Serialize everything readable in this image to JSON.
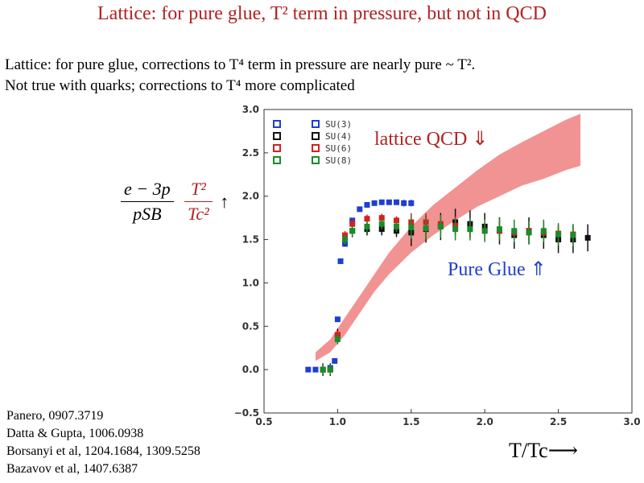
{
  "title": "Lattice: for pure glue, T² term in pressure, but not in QCD",
  "subtitle": {
    "line1": "Lattice: for pure glue, corrections to T⁴ term in pressure are nearly pure ~ T².",
    "line2": "Not true with quarks; corrections to T⁴ more complicated"
  },
  "formula": {
    "numerator": "e − 3p",
    "denominator": "pSB",
    "factor_num": "T²",
    "factor_den": "Tc²",
    "arrow": "↑"
  },
  "annotations": {
    "lattice_qcd": "lattice QCD ⇓",
    "pure_glue": "Pure Glue ⇑",
    "xaxis": "T/Tc⟶"
  },
  "references": [
    "Panero, 0907.3719",
    "Datta & Gupta, 1006.0938",
    "Borsanyi et al, 1204.1684, 1309.5258",
    "Bazavov et al, 1407.6387"
  ],
  "colors": {
    "title": "#b22222",
    "band": "#f08080",
    "su3": "#1f3fd0",
    "su4": "#111111",
    "su6": "#d62020",
    "su8": "#1a8c2a"
  },
  "chart_data": {
    "type": "scatter",
    "xlim": [
      0.5,
      3.0
    ],
    "ylim": [
      -0.5,
      3.0
    ],
    "xticks": [
      "0.5",
      "1.0",
      "1.5",
      "2.0",
      "2.5",
      "3.0"
    ],
    "yticks": [
      "−0.5",
      "0.0",
      "0.5",
      "1.0",
      "1.5",
      "2.0",
      "2.5",
      "3.0"
    ],
    "legend": [
      "SU(3)",
      "SU(4)",
      "SU(6)",
      "SU(8)"
    ],
    "series": [
      {
        "name": "SU(3)",
        "x": [
          0.8,
          0.85,
          0.9,
          0.95,
          0.98,
          1.0,
          1.02,
          1.05,
          1.1,
          1.15,
          1.2,
          1.25,
          1.3,
          1.35,
          1.4,
          1.45,
          1.5
        ],
        "y": [
          0.0,
          0.0,
          0.0,
          0.02,
          0.1,
          0.58,
          1.25,
          1.45,
          1.72,
          1.85,
          1.9,
          1.92,
          1.93,
          1.93,
          1.93,
          1.92,
          1.92
        ]
      },
      {
        "name": "SU(4)",
        "x": [
          0.9,
          0.95,
          1.0,
          1.05,
          1.1,
          1.2,
          1.3,
          1.4,
          1.5,
          1.6,
          1.7,
          1.8,
          1.9,
          2.0,
          2.1,
          2.2,
          2.3,
          2.4,
          2.5,
          2.6,
          2.7
        ],
        "y": [
          0.0,
          0.0,
          0.4,
          1.5,
          1.6,
          1.62,
          1.62,
          1.6,
          1.58,
          1.62,
          1.65,
          1.7,
          1.68,
          1.65,
          1.6,
          1.55,
          1.6,
          1.55,
          1.5,
          1.5,
          1.52
        ]
      },
      {
        "name": "SU(6)",
        "x": [
          0.9,
          0.95,
          1.0,
          1.05,
          1.1,
          1.2,
          1.3,
          1.4,
          1.5,
          1.6,
          1.7,
          1.8,
          1.9,
          2.0,
          2.1,
          2.2,
          2.3,
          2.4,
          2.5,
          2.6
        ],
        "y": [
          0.0,
          0.0,
          0.4,
          1.55,
          1.68,
          1.74,
          1.75,
          1.72,
          1.7,
          1.7,
          1.68,
          1.66,
          1.62,
          1.6,
          1.6,
          1.58,
          1.6,
          1.58,
          1.57,
          1.56
        ]
      },
      {
        "name": "SU(8)",
        "x": [
          0.9,
          0.95,
          1.0,
          1.05,
          1.1,
          1.2,
          1.3,
          1.4,
          1.5,
          1.6,
          1.7,
          1.8,
          1.9,
          2.0,
          2.1,
          2.2,
          2.3,
          2.4,
          2.5,
          2.6
        ],
        "y": [
          0.0,
          0.0,
          0.35,
          1.5,
          1.6,
          1.65,
          1.68,
          1.65,
          1.64,
          1.63,
          1.65,
          1.62,
          1.62,
          1.6,
          1.62,
          1.6,
          1.58,
          1.6,
          1.56,
          1.55
        ]
      }
    ],
    "band": {
      "name": "lattice QCD",
      "x": [
        0.85,
        0.95,
        1.05,
        1.15,
        1.25,
        1.35,
        1.5,
        1.65,
        1.8,
        1.95,
        2.1,
        2.25,
        2.4,
        2.55,
        2.65
      ],
      "lower": [
        0.1,
        0.2,
        0.4,
        0.65,
        0.9,
        1.1,
        1.35,
        1.55,
        1.72,
        1.88,
        2.0,
        2.12,
        2.2,
        2.3,
        2.35
      ],
      "upper": [
        0.2,
        0.35,
        0.6,
        0.85,
        1.1,
        1.35,
        1.65,
        1.9,
        2.1,
        2.3,
        2.48,
        2.62,
        2.75,
        2.88,
        2.95
      ]
    }
  }
}
